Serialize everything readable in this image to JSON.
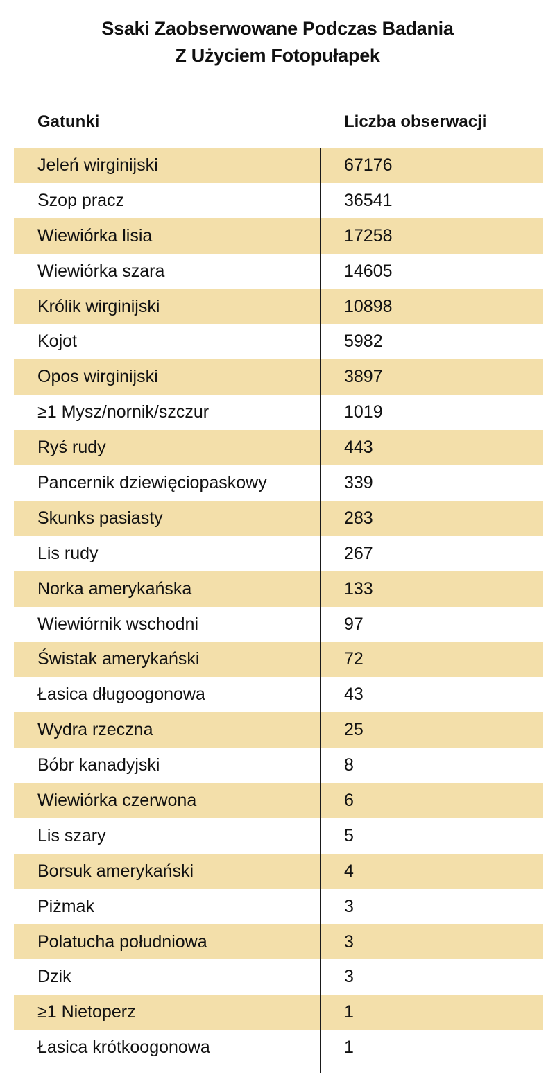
{
  "title": {
    "line1": "Ssaki Zaobserwowane Podczas Badania",
    "line2": "Z Użyciem Fotopułapek"
  },
  "table": {
    "headers": [
      "Gatunki",
      "Liczba obserwacji"
    ],
    "stripe_color": "#F3DFAA",
    "rows": [
      {
        "species": "Jeleń wirginijski",
        "count": "67176"
      },
      {
        "species": "Szop pracz",
        "count": "36541"
      },
      {
        "species": "Wiewiórka lisia",
        "count": "17258"
      },
      {
        "species": "Wiewiórka szara",
        "count": "14605"
      },
      {
        "species": "Królik wirginijski",
        "count": "10898"
      },
      {
        "species": "Kojot",
        "count": "5982"
      },
      {
        "species": "Opos wirginijski",
        "count": "3897"
      },
      {
        "species": "≥1 Mysz/nornik/szczur",
        "count": "1019"
      },
      {
        "species": "Ryś rudy",
        "count": "443"
      },
      {
        "species": "Pancernik dziewięciopaskowy",
        "count": "339"
      },
      {
        "species": "Skunks pasiasty",
        "count": "283"
      },
      {
        "species": "Lis rudy",
        "count": "267"
      },
      {
        "species": "Norka amerykańska",
        "count": "133"
      },
      {
        "species": "Wiewiórnik wschodni",
        "count": "97"
      },
      {
        "species": "Świstak amerykański",
        "count": "72"
      },
      {
        "species": "Łasica długoogonowa",
        "count": "43"
      },
      {
        "species": "Wydra rzeczna",
        "count": "25"
      },
      {
        "species": "Bóbr kanadyjski",
        "count": "8"
      },
      {
        "species": "Wiewiórka czerwona",
        "count": "6"
      },
      {
        "species": "Lis szary",
        "count": "5"
      },
      {
        "species": "Borsuk amerykański",
        "count": "4"
      },
      {
        "species": "Piżmak",
        "count": "3"
      },
      {
        "species": "Polatucha południowa",
        "count": "3"
      },
      {
        "species": "Dzik",
        "count": "3"
      },
      {
        "species": "≥1 Nietoperz",
        "count": "1"
      },
      {
        "species": "Łasica krótkoogonowa",
        "count": "1"
      }
    ]
  }
}
